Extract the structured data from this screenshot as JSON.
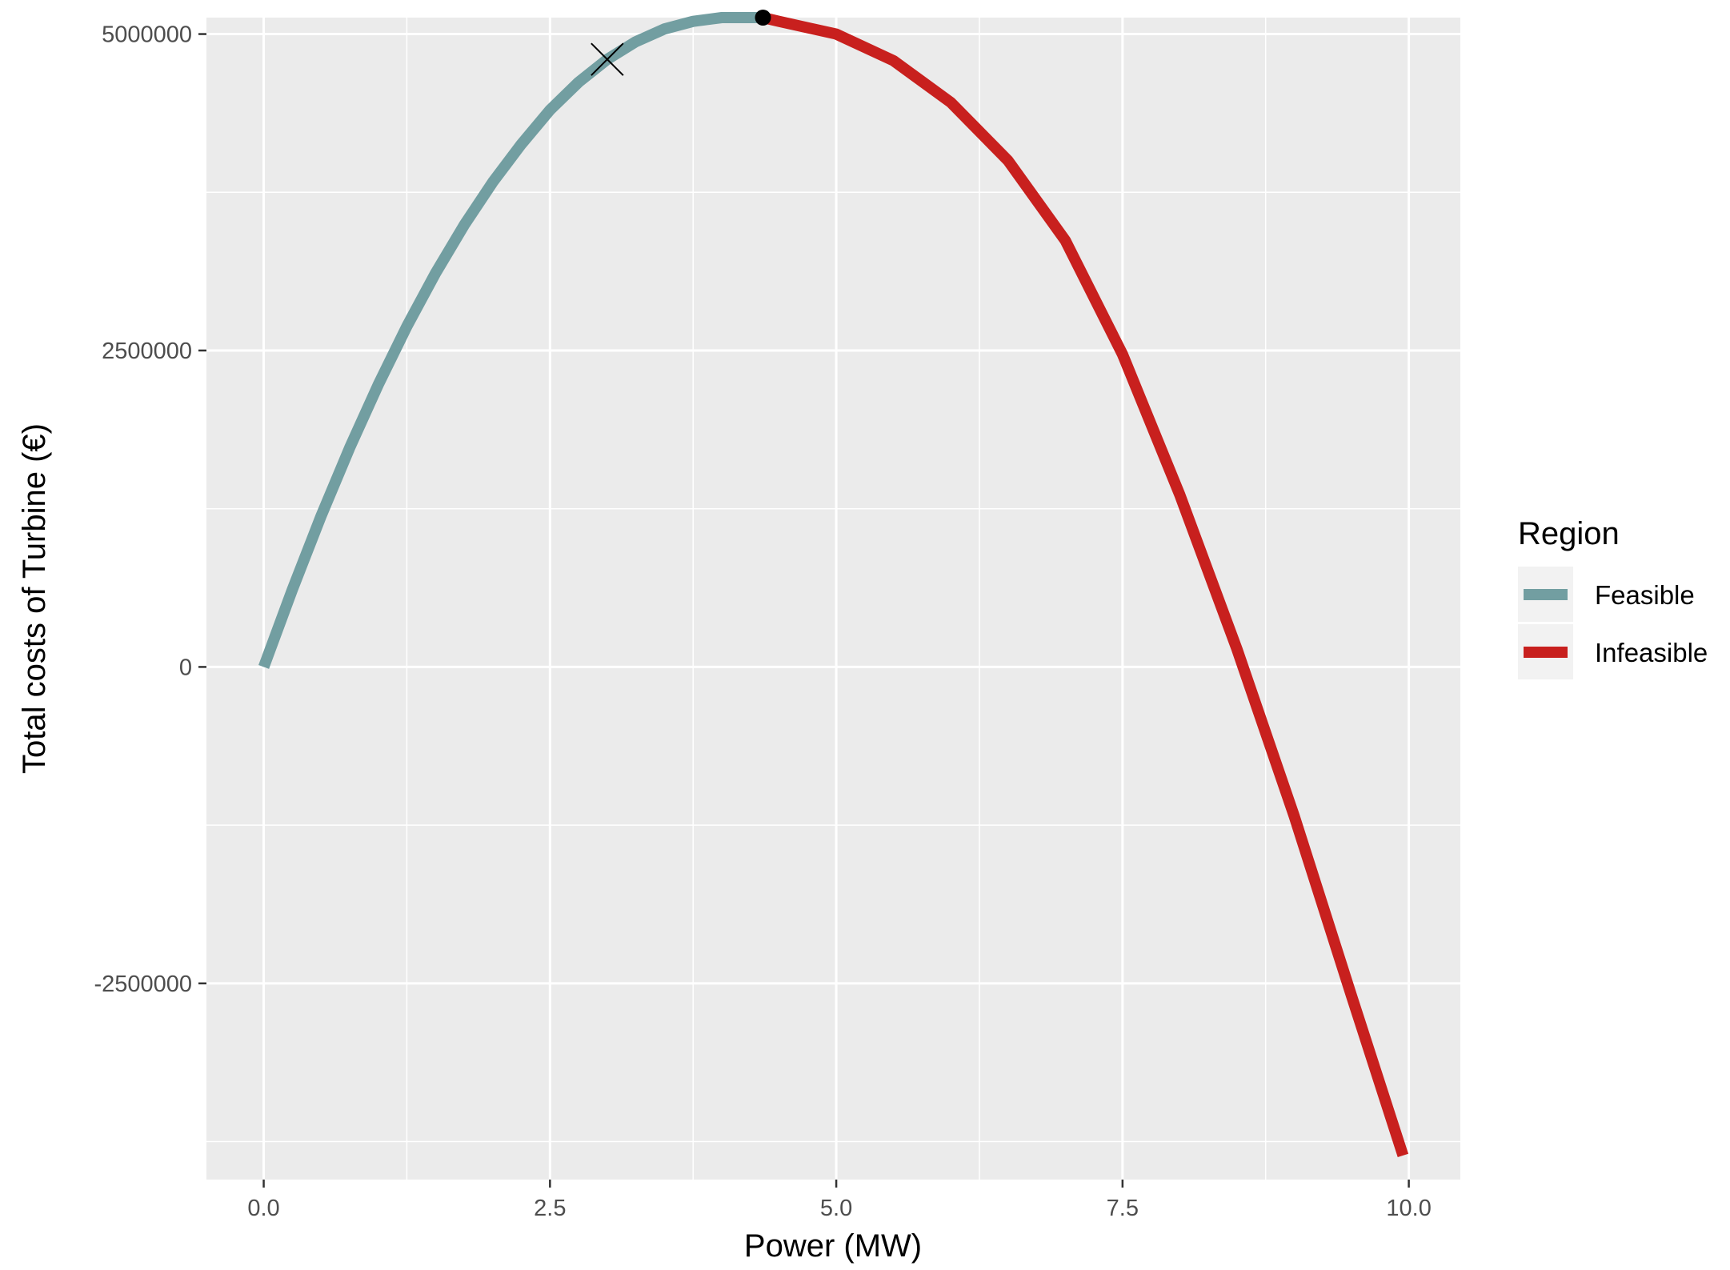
{
  "chart_data": {
    "type": "line",
    "title": "",
    "xlabel": "Power (MW)",
    "ylabel": "Total costs of Turbine (€)",
    "xlim": [
      -0.5,
      10.45
    ],
    "ylim": [
      -4050000,
      5130000
    ],
    "x_ticks": [
      0.0,
      2.5,
      5.0,
      7.5,
      10.0
    ],
    "x_tick_labels": [
      "0.0",
      "2.5",
      "5.0",
      "7.5",
      "10.0"
    ],
    "y_ticks": [
      -2500000,
      0,
      2500000,
      5000000
    ],
    "y_tick_labels": [
      "-2500000",
      "0",
      "2500000",
      "5000000"
    ],
    "grid": true,
    "legend": {
      "title": "Region",
      "position": "right",
      "entries": [
        {
          "label": "Feasible",
          "color": "#729ea1"
        },
        {
          "label": "Infeasible",
          "color": "#c8201e"
        }
      ]
    },
    "series": [
      {
        "name": "Feasible",
        "color": "#729ea1",
        "x": [
          0.0,
          0.25,
          0.5,
          0.75,
          1.0,
          1.25,
          1.5,
          1.75,
          2.0,
          2.25,
          2.5,
          2.75,
          3.0,
          3.25,
          3.5,
          3.75,
          4.0,
          4.25,
          4.36
        ],
        "y": [
          0,
          610000,
          1190000,
          1730000,
          2230000,
          2690000,
          3110000,
          3490000,
          3830000,
          4130000,
          4400000,
          4620000,
          4800000,
          4940000,
          5040000,
          5100000,
          5130000,
          5130000,
          5130000
        ]
      },
      {
        "name": "Infeasible",
        "color": "#c8201e",
        "x": [
          4.36,
          4.5,
          5.0,
          5.5,
          6.0,
          6.5,
          7.0,
          7.5,
          8.0,
          8.5,
          9.0,
          9.5,
          9.95
        ],
        "y": [
          5130000,
          5100000,
          5000000,
          4790000,
          4460000,
          4000000,
          3370000,
          2470000,
          1360000,
          140000,
          -1180000,
          -2600000,
          -3860000
        ]
      }
    ],
    "markers": [
      {
        "type": "cross",
        "x": 3.0,
        "y": 4800000,
        "color": "#000000"
      },
      {
        "type": "point",
        "x": 4.36,
        "y": 5130000,
        "color": "#000000"
      }
    ],
    "panel_color": "#ebebeb",
    "grid_color": "#ffffff"
  }
}
